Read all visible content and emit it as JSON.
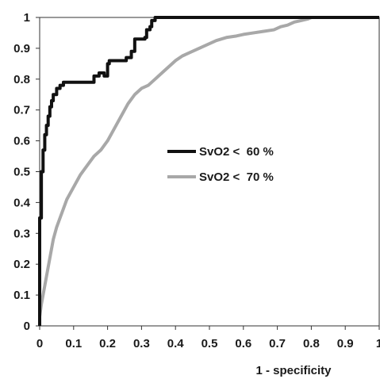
{
  "chart_data": {
    "type": "line",
    "title": "",
    "xlabel": "1 - specificity",
    "ylabel": "",
    "xlim": [
      0,
      1
    ],
    "ylim": [
      0,
      1
    ],
    "grid": false,
    "legend_position": "center-right",
    "x_ticks": [
      "0",
      "0.1",
      "0.2",
      "0.3",
      "0.4",
      "0.5",
      "0.6",
      "0.7",
      "0.8",
      "0.9",
      "1"
    ],
    "y_ticks": [
      "0",
      "0.1",
      "0.2",
      "0.3",
      "0.4",
      "0.5",
      "0.6",
      "0.7",
      "0.8",
      "0.9",
      "1"
    ],
    "series": [
      {
        "name": "SvO2 <  60 %",
        "color": "#111111",
        "step": true,
        "points": [
          [
            0,
            0
          ],
          [
            0,
            0.35
          ],
          [
            0.005,
            0.35
          ],
          [
            0.005,
            0.5
          ],
          [
            0.01,
            0.5
          ],
          [
            0.01,
            0.57
          ],
          [
            0.015,
            0.57
          ],
          [
            0.015,
            0.62
          ],
          [
            0.02,
            0.62
          ],
          [
            0.02,
            0.65
          ],
          [
            0.025,
            0.65
          ],
          [
            0.025,
            0.68
          ],
          [
            0.03,
            0.68
          ],
          [
            0.03,
            0.71
          ],
          [
            0.035,
            0.71
          ],
          [
            0.035,
            0.73
          ],
          [
            0.04,
            0.73
          ],
          [
            0.04,
            0.75
          ],
          [
            0.05,
            0.75
          ],
          [
            0.05,
            0.77
          ],
          [
            0.06,
            0.77
          ],
          [
            0.06,
            0.78
          ],
          [
            0.07,
            0.78
          ],
          [
            0.07,
            0.79
          ],
          [
            0.16,
            0.79
          ],
          [
            0.16,
            0.81
          ],
          [
            0.175,
            0.81
          ],
          [
            0.175,
            0.82
          ],
          [
            0.19,
            0.82
          ],
          [
            0.19,
            0.81
          ],
          [
            0.2,
            0.81
          ],
          [
            0.2,
            0.85
          ],
          [
            0.205,
            0.85
          ],
          [
            0.205,
            0.86
          ],
          [
            0.255,
            0.86
          ],
          [
            0.255,
            0.87
          ],
          [
            0.27,
            0.87
          ],
          [
            0.27,
            0.89
          ],
          [
            0.28,
            0.89
          ],
          [
            0.28,
            0.93
          ],
          [
            0.31,
            0.93
          ],
          [
            0.31,
            0.935
          ],
          [
            0.315,
            0.935
          ],
          [
            0.315,
            0.96
          ],
          [
            0.325,
            0.96
          ],
          [
            0.325,
            0.97
          ],
          [
            0.33,
            0.97
          ],
          [
            0.33,
            0.99
          ],
          [
            0.34,
            0.99
          ],
          [
            0.34,
            1.0
          ],
          [
            1,
            1.0
          ]
        ]
      },
      {
        "name": "SvO2 <  70 %",
        "color": "#a8a8a8",
        "step": false,
        "points": [
          [
            0,
            0.03
          ],
          [
            0.005,
            0.07
          ],
          [
            0.01,
            0.1
          ],
          [
            0.015,
            0.13
          ],
          [
            0.02,
            0.16
          ],
          [
            0.03,
            0.22
          ],
          [
            0.04,
            0.28
          ],
          [
            0.05,
            0.32
          ],
          [
            0.06,
            0.35
          ],
          [
            0.07,
            0.38
          ],
          [
            0.08,
            0.41
          ],
          [
            0.1,
            0.45
          ],
          [
            0.12,
            0.49
          ],
          [
            0.14,
            0.52
          ],
          [
            0.16,
            0.55
          ],
          [
            0.18,
            0.57
          ],
          [
            0.2,
            0.6
          ],
          [
            0.22,
            0.64
          ],
          [
            0.24,
            0.68
          ],
          [
            0.26,
            0.72
          ],
          [
            0.28,
            0.75
          ],
          [
            0.3,
            0.77
          ],
          [
            0.32,
            0.78
          ],
          [
            0.34,
            0.8
          ],
          [
            0.36,
            0.82
          ],
          [
            0.38,
            0.84
          ],
          [
            0.4,
            0.86
          ],
          [
            0.42,
            0.875
          ],
          [
            0.44,
            0.885
          ],
          [
            0.46,
            0.895
          ],
          [
            0.48,
            0.905
          ],
          [
            0.5,
            0.915
          ],
          [
            0.52,
            0.925
          ],
          [
            0.55,
            0.935
          ],
          [
            0.58,
            0.94
          ],
          [
            0.6,
            0.945
          ],
          [
            0.63,
            0.95
          ],
          [
            0.66,
            0.955
          ],
          [
            0.69,
            0.96
          ],
          [
            0.71,
            0.97
          ],
          [
            0.73,
            0.975
          ],
          [
            0.75,
            0.985
          ],
          [
            0.77,
            0.99
          ],
          [
            0.79,
            0.995
          ],
          [
            0.8,
            1.0
          ],
          [
            1,
            1.0
          ]
        ]
      }
    ]
  }
}
